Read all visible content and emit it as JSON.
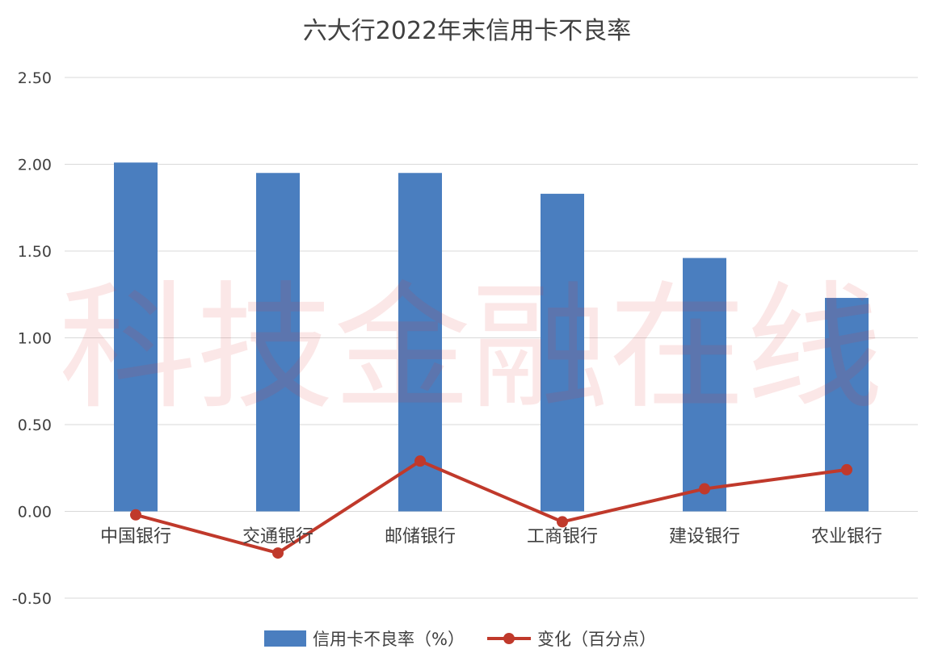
{
  "watermark": "科技金融在线",
  "colors": {
    "bar": "#4a7ebf",
    "line": "#c0392b",
    "grid": "#d9d9d9",
    "text": "#404040"
  },
  "chart_data": {
    "type": "bar",
    "title": "六大行2022年末信用卡不良率",
    "categories": [
      "中国银行",
      "交通银行",
      "邮储银行",
      "工商银行",
      "建设银行",
      "农业银行"
    ],
    "series": [
      {
        "name": "信用卡不良率（%）",
        "type": "bar",
        "values": [
          2.01,
          1.95,
          1.95,
          1.83,
          1.46,
          1.23
        ]
      },
      {
        "name": "变化（百分点）",
        "type": "line",
        "values": [
          -0.02,
          -0.24,
          0.29,
          -0.06,
          0.13,
          0.24
        ]
      }
    ],
    "ylim": [
      -0.5,
      2.5
    ],
    "yticks": [
      "2.50",
      "2.00",
      "1.50",
      "1.00",
      "0.50",
      "0.00",
      "-0.50"
    ],
    "grid": true,
    "legend": "bottom"
  }
}
